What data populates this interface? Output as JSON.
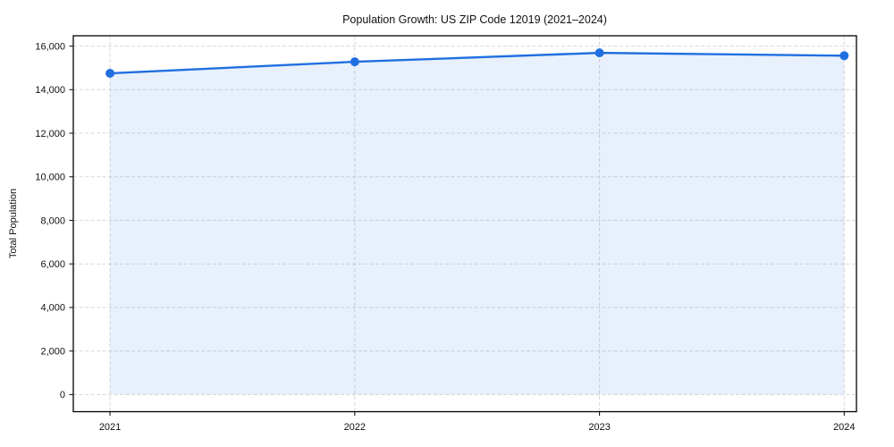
{
  "page": {
    "background_color": "#ffffff"
  },
  "chart_data": {
    "type": "line",
    "title": "Population Growth: US ZIP Code 12019 (2021–2024)",
    "xlabel": "",
    "ylabel": "Total Population",
    "x": [
      2021,
      2022,
      2023,
      2024
    ],
    "x_tick_labels": [
      "2021",
      "2022",
      "2023",
      "2024"
    ],
    "values": [
      14750,
      15280,
      15690,
      15560
    ],
    "series": [
      {
        "name": "Total Population",
        "values": [
          14750,
          15280,
          15690,
          15560
        ]
      }
    ],
    "yticks": [
      0,
      2000,
      4000,
      6000,
      8000,
      10000,
      12000,
      14000,
      16000
    ],
    "y_tick_labels": [
      "0",
      "2,000",
      "4,000",
      "6,000",
      "8,000",
      "10,000",
      "12,000",
      "14,000",
      "16,000"
    ],
    "xlim": [
      2020.85,
      2024.05
    ],
    "ylim": [
      -785,
      16475
    ],
    "grid": "dashed light-gray, horizontal and vertical",
    "legend": "none",
    "area_fill_to_zero": true,
    "marker": "circle",
    "colors": {
      "line": "#1f6fe0",
      "fill": "rgba(31,111,224,0.10)",
      "grid": "#d7d7d7",
      "spine": "#000000",
      "tick": "#1a1a1a",
      "text": "#111111"
    }
  }
}
